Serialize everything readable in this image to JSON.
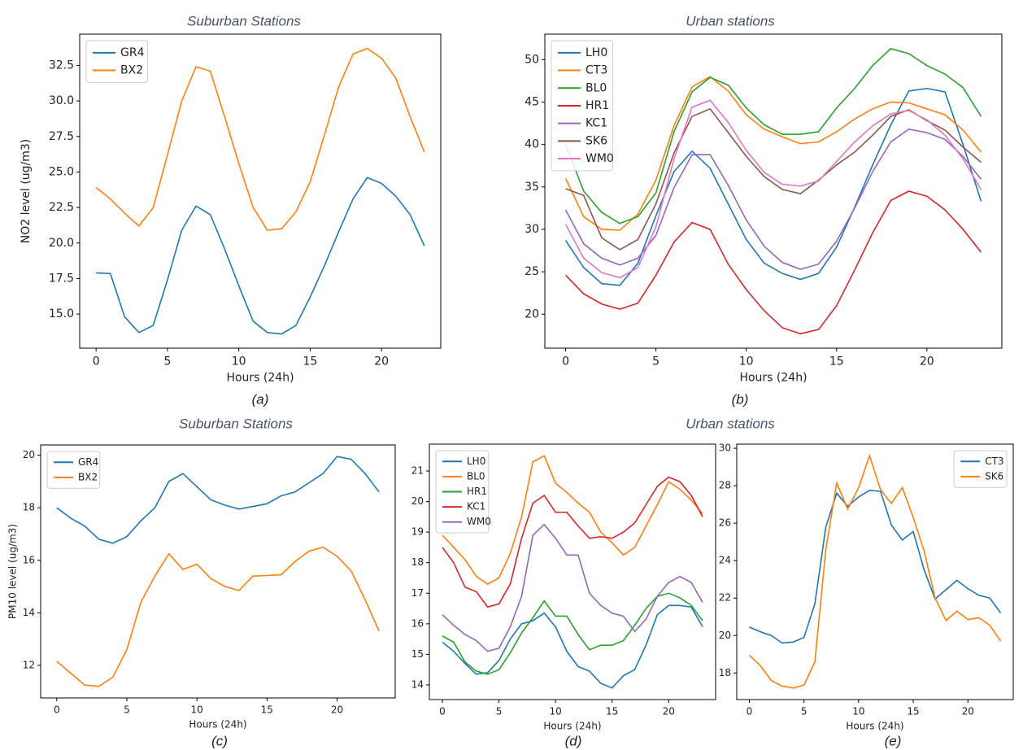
{
  "headings": [
    "Suburban Stations",
    "Urban stations",
    "Suburban Stations",
    "Urban stations"
  ],
  "chart_data": [
    {
      "type": "line",
      "caption": "(a)",
      "xlabel": "Hours (24h)",
      "ylabel": "NO2 level (ug/m3)",
      "legend": "upper left",
      "x": [
        0,
        1,
        2,
        3,
        4,
        5,
        6,
        7,
        8,
        9,
        10,
        11,
        12,
        13,
        14,
        15,
        16,
        17,
        18,
        19,
        20,
        21,
        22,
        23
      ],
      "xlim": [
        -1.15,
        24.15
      ],
      "xticks": [
        0,
        5,
        10,
        15,
        20
      ],
      "ylim": [
        12.6,
        34.7
      ],
      "yticks": [
        {
          "value": 15,
          "label": "15.0"
        },
        {
          "value": 17.5,
          "label": "17.5"
        },
        {
          "value": 20,
          "label": "20.0"
        },
        {
          "value": 22.5,
          "label": "22.5"
        },
        {
          "value": 25,
          "label": "25.0"
        },
        {
          "value": 27.5,
          "label": "27.5"
        },
        {
          "value": 30,
          "label": "30.0"
        },
        {
          "value": 32.5,
          "label": "32.5"
        }
      ],
      "series": [
        {
          "name": "GR4",
          "color": "#1f77b4",
          "values": [
            17.9,
            17.85,
            14.8,
            13.7,
            14.2,
            17.4,
            20.9,
            22.6,
            22.0,
            19.6,
            17.0,
            14.5,
            13.7,
            13.6,
            14.2,
            16.2,
            18.4,
            20.8,
            23.1,
            24.6,
            24.2,
            23.3,
            22.0,
            19.8
          ]
        },
        {
          "name": "BX2",
          "color": "#ff7f0e",
          "values": [
            23.9,
            23.1,
            22.1,
            21.2,
            22.5,
            26.2,
            30.0,
            32.4,
            32.1,
            28.9,
            25.6,
            22.5,
            20.9,
            21.0,
            22.2,
            24.3,
            27.6,
            31.0,
            33.3,
            33.7,
            33.0,
            31.6,
            28.9,
            26.4
          ]
        }
      ]
    },
    {
      "type": "line",
      "caption": "(b)",
      "xlabel": "Hours (24h)",
      "legend": "upper left",
      "x": [
        0,
        1,
        2,
        3,
        4,
        5,
        6,
        7,
        8,
        9,
        10,
        11,
        12,
        13,
        14,
        15,
        16,
        17,
        18,
        19,
        20,
        21,
        22,
        23
      ],
      "xlim": [
        -1.15,
        24.15
      ],
      "xticks": [
        0,
        5,
        10,
        15,
        20
      ],
      "ylim": [
        16.0,
        53.0
      ],
      "yticks": [
        20,
        25,
        30,
        35,
        40,
        45,
        50
      ],
      "series": [
        {
          "name": "LH0",
          "color": "#1f77b4",
          "values": [
            28.7,
            25.5,
            23.6,
            23.4,
            26.0,
            31.6,
            36.8,
            39.2,
            37.2,
            33.0,
            28.8,
            26.0,
            24.8,
            24.1,
            24.8,
            27.9,
            32.6,
            37.6,
            42.3,
            46.3,
            46.6,
            46.2,
            40.0,
            33.3
          ]
        },
        {
          "name": "CT3",
          "color": "#ff7f0e",
          "values": [
            36.0,
            31.5,
            30.0,
            29.9,
            31.8,
            35.8,
            42.2,
            46.8,
            48.0,
            46.3,
            43.5,
            41.8,
            40.9,
            40.1,
            40.3,
            41.5,
            43.0,
            44.2,
            45.0,
            44.9,
            44.2,
            43.5,
            41.7,
            39.1
          ]
        },
        {
          "name": "BL0",
          "color": "#2ca02c",
          "values": [
            40.0,
            34.5,
            32.0,
            30.7,
            31.5,
            34.3,
            41.5,
            46.2,
            47.9,
            47.0,
            44.3,
            42.3,
            41.2,
            41.2,
            41.5,
            44.3,
            46.6,
            49.3,
            51.3,
            50.7,
            49.3,
            48.3,
            46.7,
            43.3
          ]
        },
        {
          "name": "HR1",
          "color": "#d62728",
          "values": [
            24.6,
            22.4,
            21.2,
            20.6,
            21.3,
            24.6,
            28.5,
            30.8,
            30.0,
            25.9,
            22.9,
            20.4,
            18.4,
            17.7,
            18.2,
            21.0,
            25.2,
            29.6,
            33.4,
            34.5,
            33.9,
            32.3,
            30.0,
            27.3
          ]
        },
        {
          "name": "KC1",
          "color": "#9467bd",
          "values": [
            32.3,
            28.3,
            26.6,
            25.8,
            26.6,
            29.3,
            34.9,
            38.8,
            38.8,
            35.2,
            31.1,
            28.0,
            26.1,
            25.3,
            25.9,
            28.6,
            32.5,
            36.8,
            40.3,
            41.8,
            41.4,
            40.6,
            38.6,
            35.9
          ]
        },
        {
          "name": "SK6",
          "color": "#8c564b",
          "values": [
            34.8,
            34.0,
            29.0,
            27.6,
            28.8,
            33.0,
            39.0,
            43.3,
            44.2,
            41.4,
            38.6,
            36.2,
            34.7,
            34.2,
            35.8,
            37.6,
            39.1,
            41.1,
            43.3,
            44.1,
            42.8,
            41.7,
            39.7,
            37.9
          ]
        },
        {
          "name": "WM0",
          "color": "#e377c2",
          "values": [
            30.6,
            26.6,
            24.9,
            24.3,
            25.5,
            30.3,
            38.3,
            44.4,
            45.2,
            42.6,
            39.3,
            36.7,
            35.3,
            35.1,
            35.7,
            38.0,
            40.3,
            42.2,
            43.6,
            44.0,
            42.9,
            41.1,
            38.3,
            34.7
          ]
        }
      ]
    },
    {
      "type": "line",
      "caption": "(c)",
      "xlabel": "Hours (24h)",
      "ylabel": "PM10 level (ug/m3)",
      "legend": "upper left",
      "x": [
        0,
        1,
        2,
        3,
        4,
        5,
        6,
        7,
        8,
        9,
        10,
        11,
        12,
        13,
        14,
        15,
        16,
        17,
        18,
        19,
        20,
        21,
        22,
        23
      ],
      "xlim": [
        -1.15,
        24.15
      ],
      "xticks": [
        0,
        5,
        10,
        15,
        20
      ],
      "ylim": [
        10.76,
        20.39
      ],
      "yticks": [
        12,
        14,
        16,
        18,
        20
      ],
      "series": [
        {
          "name": "GR4",
          "color": "#1f77b4",
          "values": [
            18.0,
            17.6,
            17.3,
            16.8,
            16.65,
            16.9,
            17.5,
            18.0,
            19.0,
            19.3,
            18.8,
            18.3,
            18.1,
            17.95,
            18.05,
            18.15,
            18.45,
            18.6,
            18.95,
            19.3,
            19.95,
            19.85,
            19.3,
            18.6
          ]
        },
        {
          "name": "BX2",
          "color": "#ff7f0e",
          "values": [
            12.15,
            11.7,
            11.25,
            11.2,
            11.55,
            12.6,
            14.4,
            15.4,
            16.25,
            15.65,
            15.85,
            15.3,
            15.0,
            14.85,
            15.4,
            15.42,
            15.45,
            15.95,
            16.35,
            16.5,
            16.15,
            15.6,
            14.5,
            13.3
          ]
        }
      ]
    },
    {
      "type": "line",
      "caption": "(d)",
      "xlabel": "Hours (24h)",
      "legend": "upper left",
      "x": [
        0,
        1,
        2,
        3,
        4,
        5,
        6,
        7,
        8,
        9,
        10,
        11,
        12,
        13,
        14,
        15,
        16,
        17,
        18,
        19,
        20,
        21,
        22,
        23
      ],
      "xlim": [
        -1.15,
        24.15
      ],
      "xticks": [
        0,
        5,
        10,
        15,
        20
      ],
      "ylim": [
        13.52,
        21.88
      ],
      "yticks": [
        14,
        15,
        16,
        17,
        18,
        19,
        20,
        21
      ],
      "series": [
        {
          "name": "LH0",
          "color": "#1f77b4",
          "values": [
            15.4,
            15.1,
            14.7,
            14.35,
            14.4,
            14.8,
            15.5,
            16.0,
            16.1,
            16.35,
            15.9,
            15.1,
            14.6,
            14.45,
            14.05,
            13.9,
            14.3,
            14.5,
            15.3,
            16.3,
            16.6,
            16.6,
            16.55,
            15.9
          ]
        },
        {
          "name": "BL0",
          "color": "#ff7f0e",
          "values": [
            18.9,
            18.5,
            18.1,
            17.55,
            17.3,
            17.5,
            18.3,
            19.5,
            21.3,
            21.5,
            20.6,
            20.3,
            19.95,
            19.65,
            19.0,
            18.65,
            18.25,
            18.5,
            19.2,
            19.9,
            20.65,
            20.4,
            20.05,
            19.6
          ]
        },
        {
          "name": "HR1",
          "color": "#2ca02c",
          "values": [
            15.6,
            15.4,
            14.75,
            14.45,
            14.35,
            14.5,
            15.05,
            15.7,
            16.2,
            16.75,
            16.25,
            16.25,
            15.65,
            15.15,
            15.3,
            15.3,
            15.45,
            15.95,
            16.5,
            16.9,
            17.0,
            16.85,
            16.6,
            16.1
          ]
        },
        {
          "name": "KC1",
          "color": "#d62728",
          "values": [
            18.5,
            18.0,
            17.2,
            17.05,
            16.55,
            16.65,
            17.3,
            18.8,
            19.95,
            20.2,
            19.65,
            19.65,
            19.2,
            18.8,
            18.85,
            18.8,
            19.0,
            19.3,
            19.9,
            20.5,
            20.8,
            20.65,
            20.2,
            19.5
          ]
        },
        {
          "name": "WM0",
          "color": "#9467bd",
          "values": [
            16.3,
            15.95,
            15.65,
            15.45,
            15.1,
            15.2,
            15.9,
            16.9,
            18.9,
            19.25,
            18.8,
            18.25,
            18.25,
            17.0,
            16.6,
            16.35,
            16.25,
            15.75,
            16.15,
            16.9,
            17.35,
            17.55,
            17.35,
            16.7
          ]
        }
      ]
    },
    {
      "type": "line",
      "caption": "(e)",
      "xlabel": "Hours (24h)",
      "legend": "upper right",
      "x": [
        0,
        1,
        2,
        3,
        4,
        5,
        6,
        7,
        8,
        9,
        10,
        11,
        12,
        13,
        14,
        15,
        16,
        17,
        18,
        19,
        20,
        21,
        22,
        23
      ],
      "xlim": [
        -1.15,
        24.15
      ],
      "xticks": [
        0,
        5,
        10,
        15,
        20
      ],
      "ylim": [
        16.58,
        30.22
      ],
      "yticks": [
        18,
        20,
        22,
        24,
        26,
        28,
        30
      ],
      "series": [
        {
          "name": "CT3",
          "color": "#1f77b4",
          "values": [
            20.45,
            20.2,
            20.0,
            19.6,
            19.65,
            19.9,
            21.7,
            25.8,
            27.6,
            26.9,
            27.4,
            27.75,
            27.7,
            25.9,
            25.1,
            25.55,
            23.5,
            21.95,
            22.45,
            22.95,
            22.5,
            22.15,
            22.0,
            21.2
          ]
        },
        {
          "name": "SK6",
          "color": "#ff7f0e",
          "values": [
            18.95,
            18.4,
            17.6,
            17.3,
            17.2,
            17.35,
            18.6,
            24.6,
            28.15,
            26.75,
            27.9,
            29.6,
            27.8,
            27.05,
            27.9,
            26.3,
            24.5,
            22.0,
            20.8,
            21.3,
            20.85,
            20.95,
            20.55,
            19.7
          ]
        }
      ]
    }
  ]
}
